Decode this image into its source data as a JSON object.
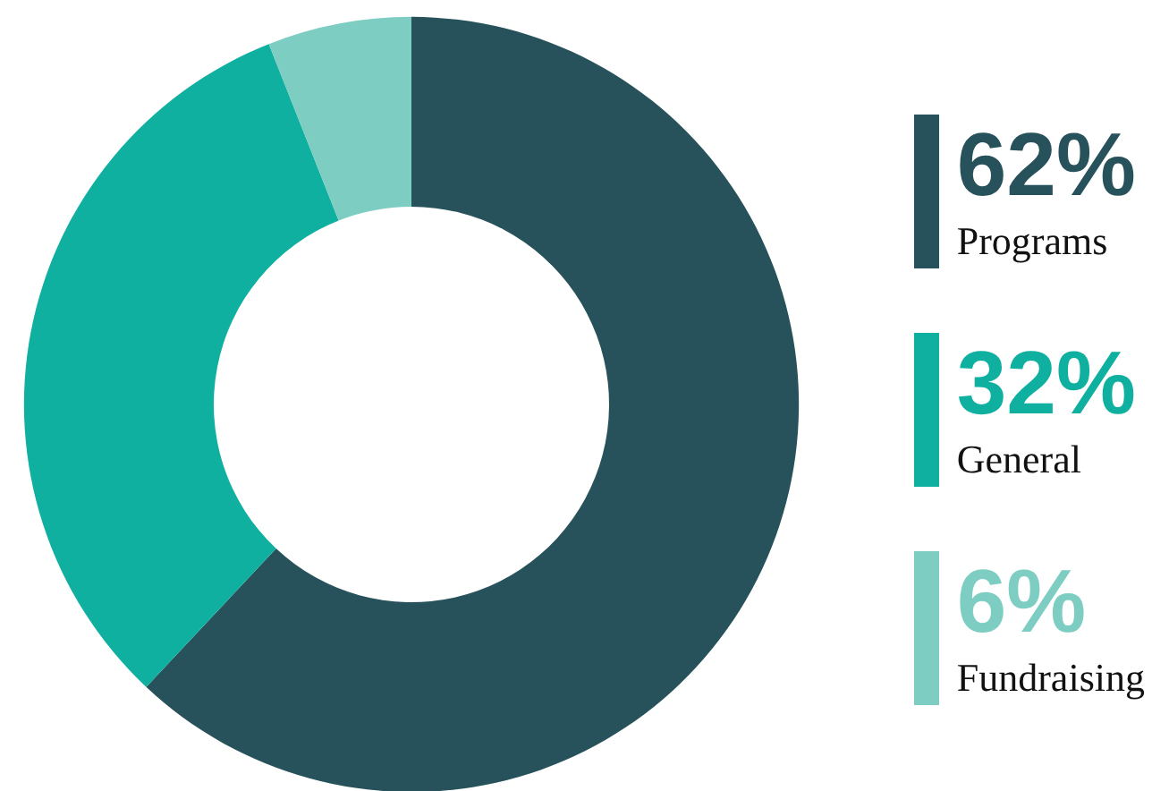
{
  "chart_data": {
    "type": "donut",
    "categories": [
      "Programs",
      "General",
      "Fundraising"
    ],
    "values": [
      62,
      32,
      6
    ],
    "value_labels": [
      "62%",
      "32%",
      "6%"
    ],
    "colors": [
      "#27525b",
      "#0fb0a0",
      "#7ecdc2"
    ],
    "data_labels": true,
    "legend": "right"
  }
}
